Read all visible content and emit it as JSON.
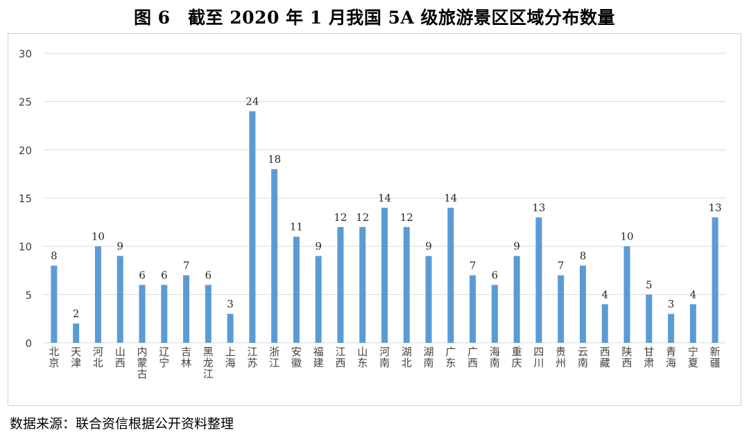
{
  "figure": {
    "title": "图 6　截至 2020 年 1 月我国 5A 级旅游景区区域分布数量",
    "source": "数据来源：联合资信根据公开资料整理"
  },
  "colors": {
    "bar": "#5b9bd5",
    "grid": "#d9d9d9",
    "axis_text": "#404040",
    "label_text": "#262626"
  },
  "chart_data": {
    "type": "bar",
    "title": "图 6　截至 2020 年 1 月我国 5A 级旅游景区区域分布数量",
    "xlabel": "",
    "ylabel": "",
    "ylim": [
      0,
      30
    ],
    "yticks": [
      0,
      5,
      10,
      15,
      20,
      25,
      30
    ],
    "grid": true,
    "legend": "none",
    "data_labels": true,
    "categories": [
      "北京",
      "天津",
      "河北",
      "山西",
      "内蒙古",
      "辽宁",
      "吉林",
      "黑龙江",
      "上海",
      "江苏",
      "浙江",
      "安徽",
      "福建",
      "江西",
      "山东",
      "河南",
      "湖北",
      "湖南",
      "广东",
      "广西",
      "海南",
      "重庆",
      "四川",
      "贵州",
      "云南",
      "西藏",
      "陕西",
      "甘肃",
      "青海",
      "宁夏",
      "新疆"
    ],
    "values": [
      8,
      2,
      10,
      9,
      6,
      6,
      7,
      6,
      3,
      24,
      18,
      11,
      9,
      12,
      12,
      14,
      12,
      9,
      14,
      7,
      6,
      9,
      13,
      7,
      8,
      4,
      10,
      5,
      3,
      4,
      13
    ]
  }
}
